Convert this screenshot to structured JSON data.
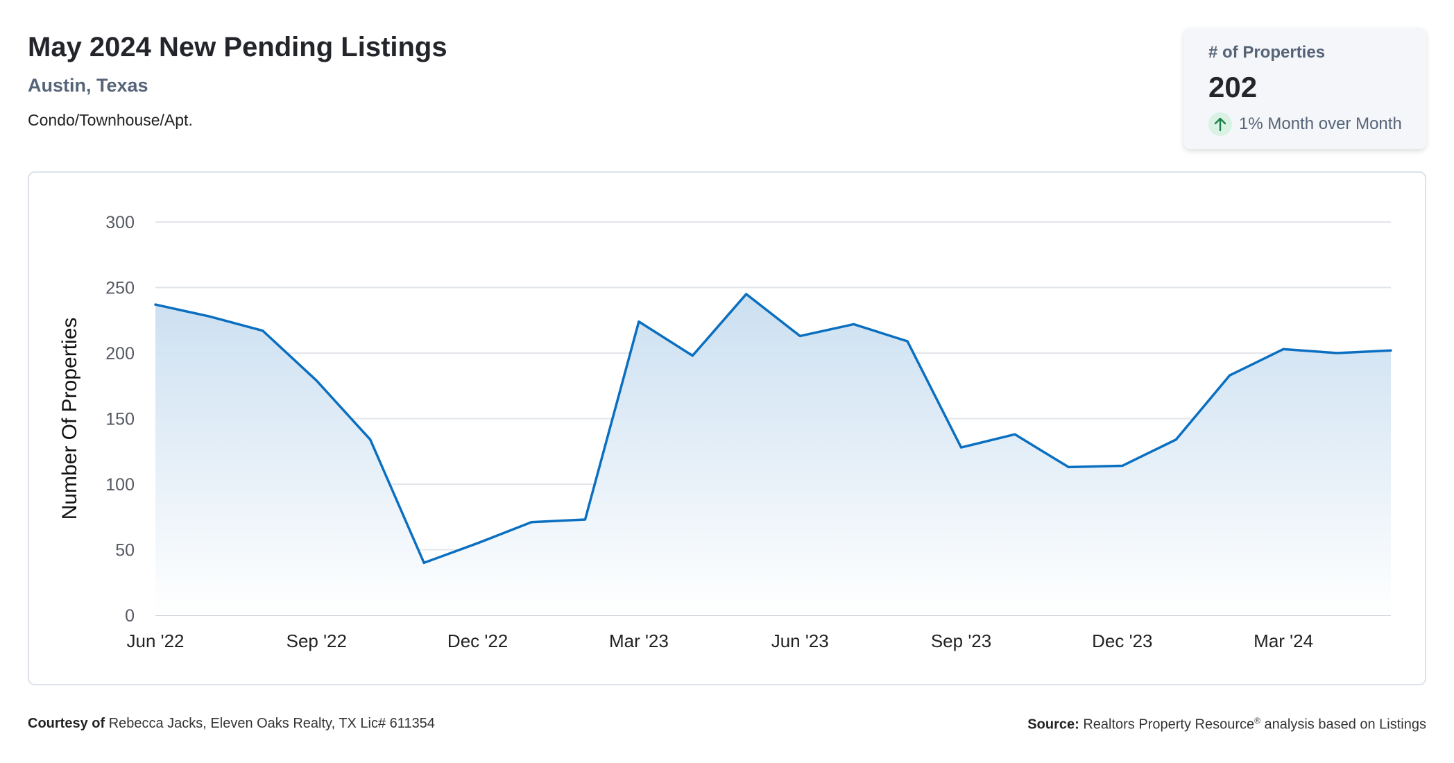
{
  "header": {
    "title": "May 2024 New Pending Listings",
    "location": "Austin, Texas",
    "property_type": "Condo/Townhouse/Apt."
  },
  "kpi": {
    "label": "# of Properties",
    "value": "202",
    "change": "1% Month over Month",
    "direction_icon": "arrow-up-icon"
  },
  "footer": {
    "courtesy_label": "Courtesy of",
    "courtesy_text": "Rebecca Jacks, Eleven Oaks Realty, TX Lic# 611354",
    "source_label": "Source:",
    "source_name": "Realtors Property Resource",
    "source_mark": "®",
    "source_text": "analysis based on Listings"
  },
  "colors": {
    "line": "#0a6fc0",
    "area_top": "#c9def0",
    "area_bottom": "#ffffff",
    "grid": "#e2e5ea",
    "up_badge_bg": "#d9f2e4",
    "up_arrow": "#1a7f46"
  },
  "chart_data": {
    "type": "area",
    "ylabel": "Number Of Properties",
    "xlabel": "",
    "ylim": [
      0,
      300
    ],
    "yticks": [
      0,
      50,
      100,
      150,
      200,
      250,
      300
    ],
    "grid": true,
    "x": [
      "Jun '22",
      "Jul '22",
      "Aug '22",
      "Sep '22",
      "Oct '22",
      "Nov '22",
      "Dec '22",
      "Jan '23",
      "Feb '23",
      "Mar '23",
      "Apr '23",
      "May '23",
      "Jun '23",
      "Jul '23",
      "Aug '23",
      "Sep '23",
      "Oct '23",
      "Nov '23",
      "Dec '23",
      "Jan '24",
      "Feb '24",
      "Mar '24",
      "Apr '24",
      "May '24"
    ],
    "xtick_labels": [
      "Jun '22",
      "Sep '22",
      "Dec '22",
      "Mar '23",
      "Jun '23",
      "Sep '23",
      "Dec '23",
      "Mar '24"
    ],
    "series": [
      {
        "values": [
          237,
          228,
          217,
          179,
          134,
          40,
          55,
          71,
          73,
          224,
          198,
          245,
          213,
          222,
          209,
          128,
          138,
          113,
          114,
          134,
          183,
          203,
          200,
          202
        ]
      }
    ]
  }
}
